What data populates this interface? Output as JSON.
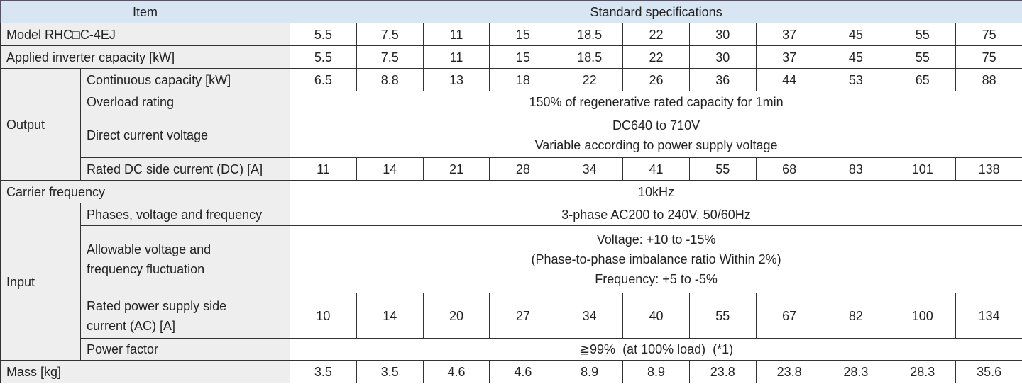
{
  "header": {
    "item": "Item",
    "spec": "Standard specifications"
  },
  "rows": [
    {
      "label": "Model RHC□C-4EJ",
      "values": [
        5.5,
        7.5,
        11,
        15,
        18.5,
        22,
        30,
        37,
        45,
        55,
        75
      ]
    },
    {
      "label": "Applied inverter capacity [kW]",
      "values": [
        5.5,
        7.5,
        11,
        15,
        18.5,
        22,
        30,
        37,
        45,
        55,
        75
      ]
    },
    {
      "group": "Output",
      "items": [
        {
          "label": "Continuous capacity [kW]",
          "values": [
            6.5,
            8.8,
            13,
            18,
            22,
            26,
            36,
            44,
            53,
            65,
            88
          ]
        },
        {
          "label": "Overload rating",
          "text": [
            "150% of regenerative rated capacity for 1min"
          ]
        },
        {
          "label": "Direct current voltage",
          "text": [
            "DC640 to 710V",
            "Variable according to power supply voltage"
          ]
        },
        {
          "label": "Rated DC side current (DC) [A]",
          "values": [
            11,
            14,
            21,
            28,
            34,
            41,
            55,
            68,
            83,
            101,
            138
          ]
        }
      ]
    },
    {
      "label": "Carrier frequency",
      "text": [
        "10kHz"
      ]
    },
    {
      "group": "Input",
      "items": [
        {
          "label": "Phases, voltage and frequency",
          "text": [
            "3-phase AC200 to 240V, 50/60Hz"
          ]
        },
        {
          "label": [
            "Allowable voltage and",
            "frequency fluctuation"
          ],
          "text": [
            "Voltage: +10 to -15%",
            "(Phase-to-phase imbalance ratio Within 2%)",
            "Frequency: +5 to -5%"
          ]
        },
        {
          "label": [
            "Rated power supply side",
            "current (AC) [A]"
          ],
          "values": [
            10,
            14,
            20,
            27,
            34,
            40,
            55,
            67,
            82,
            100,
            134
          ]
        },
        {
          "label": "Power factor",
          "text": [
            "≧99%  (at 100% load)  (*1)"
          ]
        }
      ]
    },
    {
      "label": "Mass [kg]",
      "values": [
        3.5,
        3.5,
        4.6,
        4.6,
        8.9,
        8.9,
        23.8,
        23.8,
        28.3,
        28.3,
        35.6
      ]
    }
  ]
}
